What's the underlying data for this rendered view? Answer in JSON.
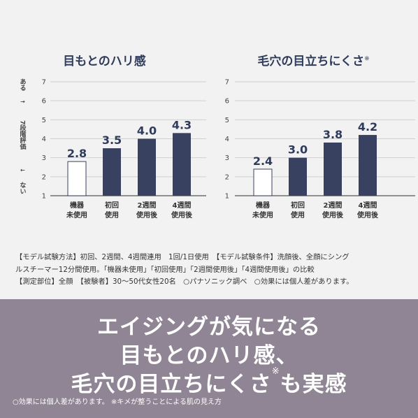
{
  "chart_data": [
    {
      "type": "bar",
      "title": "目もとのハリ感",
      "title_mark": "",
      "categories": [
        [
          "機器",
          "未使用"
        ],
        [
          "初回",
          "使用"
        ],
        [
          "2週間",
          "使用後"
        ],
        [
          "4週間",
          "使用後"
        ]
      ],
      "values": [
        2.8,
        3.5,
        4.0,
        4.3
      ],
      "value_labels": [
        "2.8",
        "3.5",
        "4.0",
        "4.3"
      ],
      "ylim": [
        1,
        7
      ],
      "yticks": [
        "1",
        "2",
        "3",
        "4",
        "5",
        "6",
        "7"
      ],
      "ylabel_top": "ある",
      "ylabel_mid": "7段階評価",
      "ylabel_bottom": "ない",
      "grid": true,
      "colors": {
        "first_bar": "#ffffff",
        "bars": "#38415f"
      }
    },
    {
      "type": "bar",
      "title": "毛穴の目立ちにくさ",
      "title_mark": "※",
      "categories": [
        [
          "機器",
          "未使用"
        ],
        [
          "初回",
          "使用"
        ],
        [
          "2週間",
          "使用後"
        ],
        [
          "4週間",
          "使用後"
        ]
      ],
      "values": [
        2.4,
        3.0,
        3.8,
        4.2
      ],
      "value_labels": [
        "2.4",
        "3.0",
        "3.8",
        "4.2"
      ],
      "ylim": [
        1,
        7
      ],
      "yticks": [
        "1",
        "2",
        "3",
        "4",
        "5",
        "6",
        "7"
      ],
      "grid": true,
      "colors": {
        "first_bar": "#ffffff",
        "bars": "#38415f"
      }
    }
  ],
  "notes": {
    "line1": "【モデル試験方法】初回、2週間、4週間連用　1回/1日使用　【モデル試験条件】洗顔後、全顔にシング",
    "line2": "ルスチーマー12分間使用。「機器未使用」「初回使用」「2週間使用後」「4週間使用後」の比較",
    "line3": "【測定部位】全顔　【被験者】30〜50代女性20名　○パナソニック調べ　○効果には個人差があります。"
  },
  "banner": {
    "line1": "エイジングが気になる",
    "line2": "目もとのハリ感、",
    "line3a": "毛穴の目立ちにくさ",
    "line3_mark": "※",
    "line3b": "も実感",
    "footnote": "○効果には個人差があります。 ※キメが整うことによる肌の見え方",
    "color": "#8f8594"
  }
}
